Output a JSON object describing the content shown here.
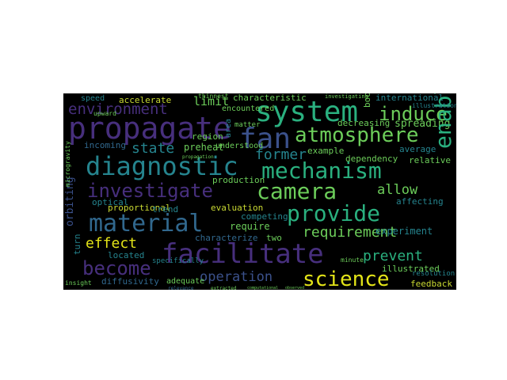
{
  "word_cloud": {
    "palette": {
      "purple": "#472f7d",
      "indigo": "#3b518b",
      "blue": "#31688e",
      "teal": "#25848e",
      "green": "#2ab07f",
      "lime": "#6ccd5a",
      "yellow": "#c9d932",
      "gold": "#e3e418",
      "gray": "#8a8a8a"
    },
    "words": [
      {
        "text": "propagate",
        "color": "#472f7d"
      },
      {
        "text": "system",
        "color": "#2ab07f"
      },
      {
        "text": "induce",
        "color": "#6ccd5a"
      },
      {
        "text": "environment",
        "color": "#472f7d"
      },
      {
        "text": "limit",
        "color": "#6ccd5a"
      },
      {
        "text": "accelerate",
        "color": "#c9d932"
      },
      {
        "text": "characteristic",
        "color": "#6ccd5a"
      },
      {
        "text": "international",
        "color": "#25848e"
      },
      {
        "text": "fan",
        "color": "#3b518b"
      },
      {
        "text": "atmosphere",
        "color": "#6ccd5a"
      },
      {
        "text": "spreading",
        "color": "#6ccd5a"
      },
      {
        "text": "decreasing",
        "color": "#6ccd5a"
      },
      {
        "text": "region",
        "color": "#6ccd5a"
      },
      {
        "text": "encountered",
        "color": "#6ccd5a"
      },
      {
        "text": "state",
        "color": "#25848e"
      },
      {
        "text": "preheat",
        "color": "#6ccd5a"
      },
      {
        "text": "incoming",
        "color": "#31688e"
      },
      {
        "text": "understood",
        "color": "#6ccd5a"
      },
      {
        "text": "example",
        "color": "#6ccd5a"
      },
      {
        "text": "average",
        "color": "#25848e"
      },
      {
        "text": "diagnostic",
        "color": "#25848e"
      },
      {
        "text": "mechanism",
        "color": "#2ab07f"
      },
      {
        "text": "former",
        "color": "#25848e"
      },
      {
        "text": "dependency",
        "color": "#6ccd5a"
      },
      {
        "text": "relative",
        "color": "#6ccd5a"
      },
      {
        "text": "enable",
        "color": "#2ab07f"
      },
      {
        "text": "investigate",
        "color": "#472f7d"
      },
      {
        "text": "production",
        "color": "#6ccd5a"
      },
      {
        "text": "camera",
        "color": "#6ccd5a"
      },
      {
        "text": "allow",
        "color": "#6ccd5a"
      },
      {
        "text": "optical",
        "color": "#25848e"
      },
      {
        "text": "orbiting",
        "color": "#3b518b"
      },
      {
        "text": "proportional",
        "color": "#c9d932"
      },
      {
        "text": "trend",
        "color": "#25848e"
      },
      {
        "text": "evaluation",
        "color": "#c9d932"
      },
      {
        "text": "provide",
        "color": "#2ab07f"
      },
      {
        "text": "affecting",
        "color": "#25848e"
      },
      {
        "text": "material",
        "color": "#31688e"
      },
      {
        "text": "competing",
        "color": "#25848e"
      },
      {
        "text": "require",
        "color": "#6ccd5a"
      },
      {
        "text": "requirement",
        "color": "#6ccd5a"
      },
      {
        "text": "experiment",
        "color": "#25848e"
      },
      {
        "text": "effect",
        "color": "#e3e418"
      },
      {
        "text": "characterize",
        "color": "#31688e"
      },
      {
        "text": "two",
        "color": "#6ccd5a"
      },
      {
        "text": "located",
        "color": "#25848e"
      },
      {
        "text": "facilitate",
        "color": "#472f7d"
      },
      {
        "text": "prevent",
        "color": "#2ab07f"
      },
      {
        "text": "become",
        "color": "#472f7d"
      },
      {
        "text": "operation",
        "color": "#3b518b"
      },
      {
        "text": "science",
        "color": "#e3e418"
      },
      {
        "text": "illustrated",
        "color": "#6ccd5a"
      },
      {
        "text": "diffusivity",
        "color": "#31688e"
      },
      {
        "text": "adequate",
        "color": "#6ccd5a"
      },
      {
        "text": "feedback",
        "color": "#c9d932"
      },
      {
        "text": "speed",
        "color": "#25848e"
      },
      {
        "text": "turn",
        "color": "#25848e"
      },
      {
        "text": "specifically",
        "color": "#25848e"
      },
      {
        "text": "thinnest",
        "color": "#6ccd5a"
      },
      {
        "text": "investigating",
        "color": "#6ccd5a"
      },
      {
        "text": "boot",
        "color": "#6ccd5a"
      },
      {
        "text": "illustration",
        "color": "#25848e"
      },
      {
        "text": "upward",
        "color": "#6ccd5a"
      },
      {
        "text": "area",
        "color": "#25848e"
      },
      {
        "text": "matter",
        "color": "#6ccd5a"
      },
      {
        "text": "microgravity",
        "color": "#6ccd5a"
      },
      {
        "text": "propagation",
        "color": "#6ccd5a"
      },
      {
        "text": "extracted",
        "color": "#6ccd5a"
      },
      {
        "text": "minute",
        "color": "#6ccd5a"
      },
      {
        "text": "resolution",
        "color": "#25848e"
      },
      {
        "text": "insight",
        "color": "#6ccd5a"
      },
      {
        "text": "relevance",
        "color": "#31688e"
      },
      {
        "text": "computational",
        "color": "#6ccd5a"
      },
      {
        "text": "observed",
        "color": "#6ccd5a"
      }
    ]
  }
}
